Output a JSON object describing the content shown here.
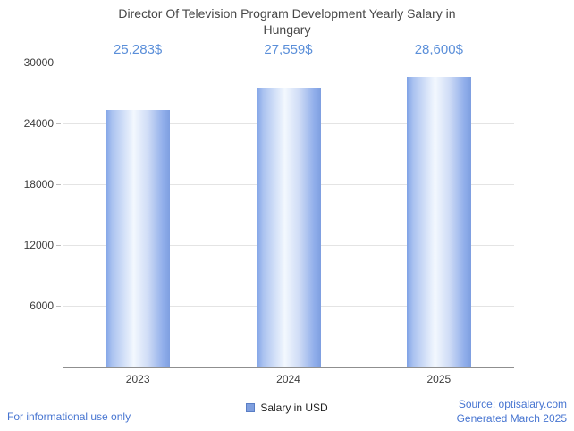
{
  "title": "Director Of Television Program Development Yearly Salary in Hungary",
  "chart_data": {
    "type": "bar",
    "title": "Director Of Television Program Development Yearly Salary in Hungary",
    "categories": [
      "2023",
      "2024",
      "2025"
    ],
    "values": [
      25283,
      27559,
      28600
    ],
    "value_labels": [
      "25,283$",
      "27,559$",
      "28,600$"
    ],
    "series": [
      {
        "name": "Salary in USD",
        "values": [
          25283,
          27559,
          28600
        ]
      }
    ],
    "xlabel": "",
    "ylabel": "",
    "ylim": [
      0,
      30000
    ],
    "yticks": [
      6000,
      12000,
      18000,
      24000,
      30000
    ],
    "grid": true,
    "legend_position": "bottom",
    "bar_color": "#8caae8",
    "value_label_color": "#5b8fd9"
  },
  "legend": {
    "label": "Salary in USD",
    "swatch_color": "#7f9fdf"
  },
  "footer": {
    "disclaimer": "For informational use only",
    "source": "Source: optisalary.com",
    "generated": "Generated March 2025"
  }
}
